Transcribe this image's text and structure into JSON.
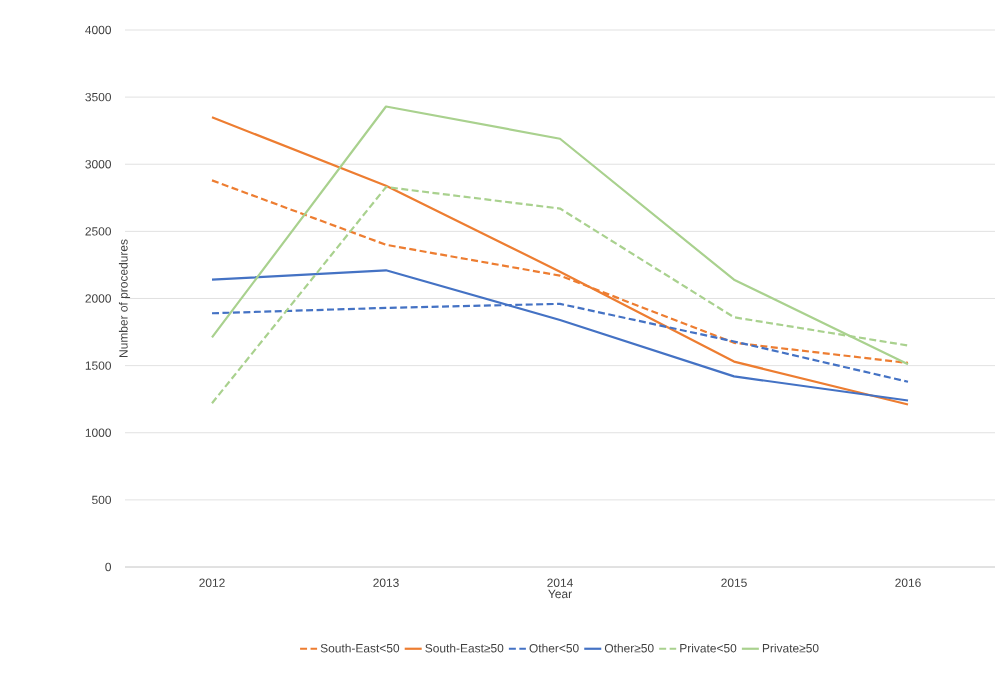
{
  "chart_data": {
    "type": "line",
    "xlabel": "Year",
    "ylabel": "Number of procedures",
    "categories": [
      "2012",
      "2013",
      "2014",
      "2015",
      "2016"
    ],
    "ylim": [
      0,
      4000
    ],
    "yticks": [
      0,
      500,
      1000,
      1500,
      2000,
      2500,
      3000,
      3500,
      4000
    ],
    "grid": "y",
    "legend": "bottom",
    "marker": "none",
    "series": [
      {
        "name": "South-East<50",
        "color": "#ed7d31",
        "line_style": "dashed",
        "values": [
          2880,
          2400,
          2170,
          1670,
          1520
        ]
      },
      {
        "name": "South-East≥50",
        "color": "#ed7d31",
        "line_style": "solid",
        "values": [
          3350,
          2840,
          2200,
          1530,
          1210
        ]
      },
      {
        "name": "Other<50",
        "color": "#4472c4",
        "line_style": "dashed",
        "values": [
          1890,
          1930,
          1960,
          1680,
          1380
        ]
      },
      {
        "name": "Other≥50",
        "color": "#4472c4",
        "line_style": "solid",
        "values": [
          2140,
          2210,
          1840,
          1420,
          1240
        ]
      },
      {
        "name": "Private<50",
        "color": "#a9d18e",
        "line_style": "dashed",
        "values": [
          1220,
          2830,
          2670,
          1860,
          1650
        ]
      },
      {
        "name": "Private≥50",
        "color": "#a9d18e",
        "line_style": "solid",
        "values": [
          1710,
          3430,
          3190,
          2140,
          1510
        ]
      }
    ]
  }
}
